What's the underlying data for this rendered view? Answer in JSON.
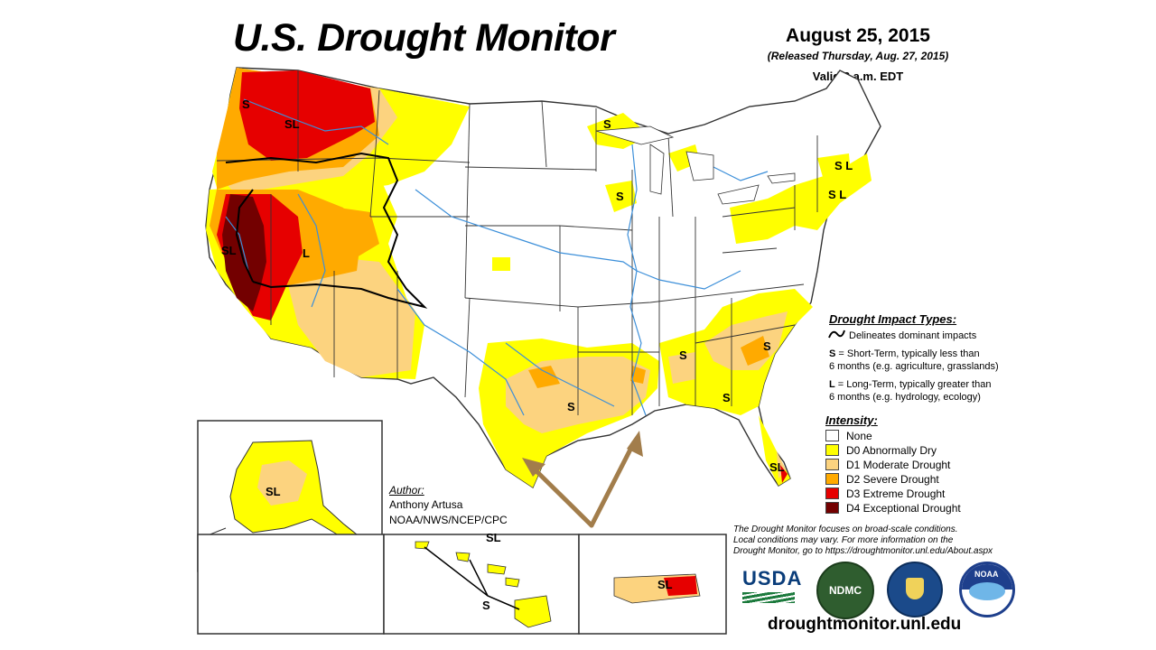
{
  "title": "U.S. Drought Monitor",
  "date": "August 25, 2015",
  "released": "(Released Thursday, Aug. 27, 2015)",
  "valid": "Valid 8 a.m. EDT",
  "impact_legend": {
    "heading": "Drought Impact Types:",
    "delineates": "Delineates dominant impacts",
    "short_term_key": "S",
    "short_term_line1": " = Short-Term, typically less than",
    "short_term_line2": "6 months (e.g. agriculture, grasslands)",
    "long_term_key": "L",
    "long_term_line1": " = Long-Term, typically greater than",
    "long_term_line2": "6 months (e.g. hydrology, ecology)"
  },
  "intensity_legend": {
    "heading": "Intensity:",
    "items": [
      {
        "label": "None",
        "color": "#ffffff"
      },
      {
        "label": "D0 Abnormally Dry",
        "color": "#ffff00"
      },
      {
        "label": "D1 Moderate Drought",
        "color": "#fcd37f"
      },
      {
        "label": "D2 Severe Drought",
        "color": "#ffaa00"
      },
      {
        "label": "D3 Extreme Drought",
        "color": "#e60000"
      },
      {
        "label": "D4 Exceptional Drought",
        "color": "#730000"
      }
    ]
  },
  "map_labels": {
    "sl": "SL",
    "s": "S",
    "l": "L",
    "sl_spaced": "S L"
  },
  "author": {
    "heading": "Author:",
    "name": "Anthony Artusa",
    "org": "NOAA/NWS/NCEP/CPC"
  },
  "disclaimer": {
    "line1": "The Drought Monitor focuses on broad-scale conditions.",
    "line2": "Local conditions may vary. For more information on the",
    "line3": "Drought Monitor, go to https://droughtmonitor.unl.edu/About.aspx"
  },
  "logos": {
    "usda": "USDA",
    "ndmc": "NDMC",
    "noaa": "NOAA"
  },
  "url": "droughtmonitor.unl.edu",
  "colors": {
    "arrow": "#a27d4b",
    "state_border": "#333333",
    "river": "#3c8fd9",
    "impact_line": "#000000"
  }
}
